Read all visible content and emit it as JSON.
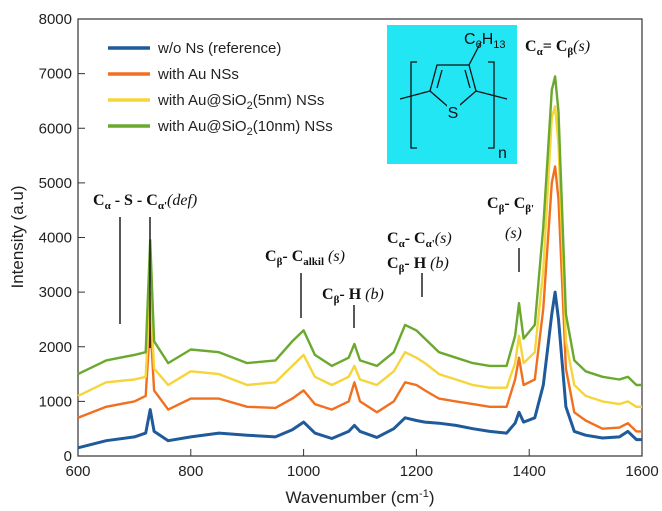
{
  "chart_data": {
    "type": "line",
    "xlabel": "Wavenumber (cm",
    "xlabel_sup": "-1",
    "xlabel_end": ")",
    "ylabel": "Intensity (a.u)",
    "xlim": [
      600,
      1600
    ],
    "ylim": [
      0,
      8000
    ],
    "xticks": [
      "600",
      "800",
      "1000",
      "1200",
      "1400",
      "1600"
    ],
    "yticks": [
      "0",
      "1000",
      "2000",
      "3000",
      "4000",
      "5000",
      "6000",
      "7000",
      "8000"
    ],
    "grid": false,
    "legend_position": "top-left",
    "legend": [
      {
        "name": "w/o Ns (reference)",
        "color": "#1f5a9a"
      },
      {
        "name": "with Au NSs",
        "color": "#f07020"
      },
      {
        "name": "with Au@SiO2(5nm) NSs",
        "color": "#f5d53a"
      },
      {
        "name": "with Au@SiO2(10nm) NSs",
        "color": "#6aa92e"
      }
    ],
    "series": [
      {
        "name": "w/o Ns (reference)",
        "color": "#1f5a9a",
        "x": [
          600,
          650,
          700,
          720,
          728,
          735,
          760,
          800,
          850,
          900,
          950,
          980,
          1000,
          1020,
          1050,
          1080,
          1090,
          1100,
          1130,
          1160,
          1180,
          1200,
          1215,
          1240,
          1270,
          1300,
          1330,
          1360,
          1375,
          1382,
          1390,
          1410,
          1425,
          1440,
          1446,
          1452,
          1465,
          1480,
          1500,
          1530,
          1560,
          1575,
          1590,
          1600
        ],
        "values": [
          150,
          280,
          350,
          420,
          850,
          450,
          280,
          350,
          420,
          380,
          350,
          480,
          620,
          420,
          320,
          450,
          560,
          450,
          340,
          500,
          700,
          650,
          620,
          600,
          560,
          500,
          450,
          420,
          600,
          800,
          620,
          700,
          1300,
          2600,
          3000,
          2500,
          900,
          450,
          380,
          330,
          350,
          450,
          300,
          300
        ]
      },
      {
        "name": "with Au NSs",
        "color": "#f07020",
        "x": [
          600,
          650,
          700,
          720,
          728,
          735,
          760,
          800,
          850,
          900,
          950,
          980,
          1000,
          1020,
          1050,
          1080,
          1090,
          1100,
          1130,
          1160,
          1180,
          1200,
          1215,
          1240,
          1270,
          1300,
          1330,
          1360,
          1375,
          1382,
          1390,
          1410,
          1425,
          1440,
          1446,
          1452,
          1465,
          1480,
          1500,
          1530,
          1560,
          1575,
          1590,
          1600
        ],
        "values": [
          700,
          900,
          1000,
          1100,
          2450,
          1200,
          850,
          1050,
          1050,
          900,
          880,
          1050,
          1200,
          950,
          850,
          1000,
          1350,
          1000,
          800,
          1000,
          1350,
          1300,
          1200,
          1050,
          1000,
          950,
          900,
          900,
          1400,
          1800,
          1300,
          1400,
          2700,
          5000,
          5300,
          4700,
          1600,
          800,
          650,
          500,
          520,
          600,
          450,
          450
        ]
      },
      {
        "name": "with Au@SiO2(5nm) NSs",
        "color": "#f5d53a",
        "x": [
          600,
          650,
          700,
          720,
          728,
          735,
          760,
          800,
          850,
          900,
          950,
          980,
          1000,
          1020,
          1050,
          1080,
          1090,
          1100,
          1130,
          1160,
          1180,
          1200,
          1215,
          1240,
          1270,
          1300,
          1330,
          1360,
          1375,
          1382,
          1390,
          1410,
          1425,
          1440,
          1446,
          1452,
          1465,
          1480,
          1500,
          1530,
          1560,
          1575,
          1590,
          1600
        ],
        "values": [
          1100,
          1350,
          1400,
          1450,
          3000,
          1600,
          1300,
          1550,
          1500,
          1300,
          1350,
          1650,
          1850,
          1450,
          1300,
          1450,
          1650,
          1400,
          1300,
          1550,
          1900,
          1800,
          1700,
          1500,
          1400,
          1300,
          1250,
          1250,
          1700,
          2200,
          1700,
          1900,
          3400,
          6200,
          6400,
          5700,
          2100,
          1300,
          1100,
          1000,
          950,
          1000,
          900,
          900
        ]
      },
      {
        "name": "with Au@SiO2(10nm) NSs",
        "color": "#6aa92e",
        "x": [
          600,
          650,
          700,
          720,
          728,
          735,
          760,
          800,
          850,
          900,
          950,
          980,
          1000,
          1020,
          1050,
          1080,
          1090,
          1100,
          1130,
          1160,
          1180,
          1200,
          1215,
          1240,
          1270,
          1300,
          1330,
          1360,
          1375,
          1382,
          1390,
          1410,
          1425,
          1440,
          1446,
          1452,
          1465,
          1480,
          1500,
          1530,
          1560,
          1575,
          1590,
          1600
        ],
        "values": [
          1500,
          1750,
          1850,
          1900,
          3950,
          2100,
          1700,
          1950,
          1900,
          1700,
          1750,
          2100,
          2300,
          1850,
          1650,
          1800,
          2050,
          1750,
          1650,
          1900,
          2400,
          2300,
          2150,
          1900,
          1800,
          1700,
          1650,
          1650,
          2200,
          2800,
          2150,
          2400,
          4200,
          6700,
          6950,
          6300,
          2600,
          1750,
          1550,
          1450,
          1400,
          1450,
          1300,
          1300
        ]
      }
    ]
  },
  "annotations": [
    {
      "id": "ann-cs",
      "parts": [
        "C",
        "α",
        "- S - C",
        "α'",
        "(def)"
      ]
    },
    {
      "id": "ann-calkil",
      "parts": [
        "C",
        "β",
        "- C",
        "alkil",
        " (s)"
      ]
    },
    {
      "id": "ann-ch1",
      "parts": [
        "C",
        "β",
        "- H",
        " (b)"
      ]
    },
    {
      "id": "ann-cc",
      "parts": [
        "C",
        "α",
        "- C",
        "α'",
        "(s)"
      ]
    },
    {
      "id": "ann-ch2",
      "parts": [
        "C",
        "β",
        "- H",
        " (b)"
      ]
    },
    {
      "id": "ann-cbcb",
      "parts": [
        "C",
        "β",
        "- C",
        "β'"
      ]
    },
    {
      "id": "ann-cbcb-s",
      "parts": [
        "(s)"
      ]
    },
    {
      "id": "ann-cacb",
      "parts": [
        "C",
        "α",
        "= C",
        "β",
        "(s)"
      ]
    }
  ],
  "molecule": {
    "substituent": "C",
    "sub6": "6",
    "h": "H",
    "sub13": "13",
    "heteroatom": "S",
    "repeat": "n",
    "box_color": "#22e6f4"
  }
}
